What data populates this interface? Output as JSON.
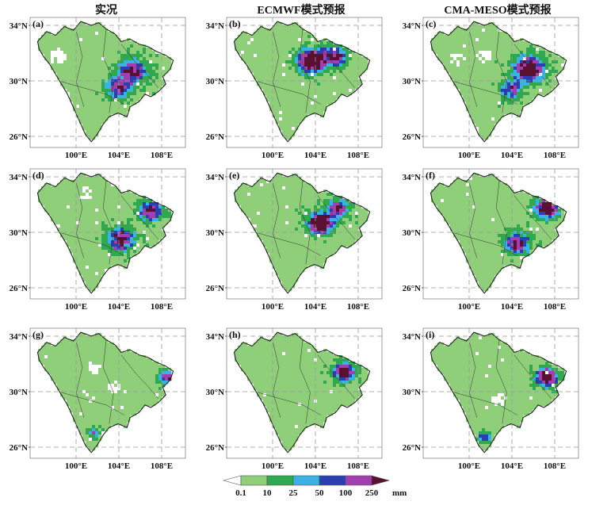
{
  "columns": [
    "实况",
    "ECMWF模式预报",
    "CMA-MESO模式预报"
  ],
  "panels": [
    {
      "label": "(a)",
      "pattern": 0
    },
    {
      "label": "(b)",
      "pattern": 1
    },
    {
      "label": "(c)",
      "pattern": 2
    },
    {
      "label": "(d)",
      "pattern": 3
    },
    {
      "label": "(e)",
      "pattern": 4
    },
    {
      "label": "(f)",
      "pattern": 5
    },
    {
      "label": "(g)",
      "pattern": 6
    },
    {
      "label": "(h)",
      "pattern": 7
    },
    {
      "label": "(i)",
      "pattern": 8
    }
  ],
  "axes": {
    "lat_ticks": [
      "34°N",
      "30°N",
      "26°N"
    ],
    "lon_ticks": [
      "100°E",
      "104°E",
      "108°E"
    ],
    "lat_values": [
      34,
      30,
      26
    ],
    "lon_values": [
      100,
      104,
      108
    ]
  },
  "colorbar": {
    "labels": [
      "0.1",
      "10",
      "25",
      "50",
      "100",
      "250"
    ],
    "unit": "mm",
    "colors": [
      "#ffffff",
      "#8fcf7a",
      "#2fa84f",
      "#3bb2e3",
      "#2b3fb3",
      "#a23fb0",
      "#5a1030"
    ]
  }
}
